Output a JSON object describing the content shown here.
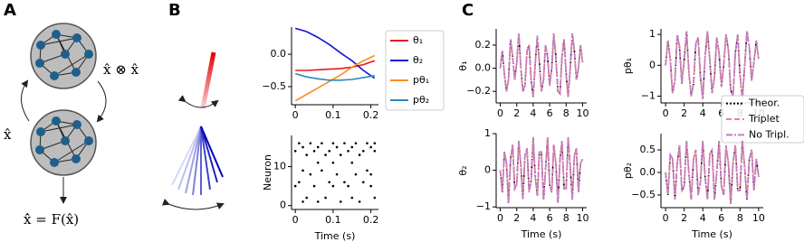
{
  "figure": {
    "panel_labels": [
      "A",
      "B",
      "C"
    ],
    "equations": [
      "x̂ ⊗ x̂",
      "x̂",
      "x̂̇ = F(x̂)"
    ]
  },
  "chart_data": [
    {
      "type": "line",
      "legend": "right",
      "x": [
        0,
        0.03,
        0.06,
        0.09,
        0.12,
        0.15,
        0.18,
        0.21
      ],
      "xlim": [
        -0.01,
        0.22
      ],
      "xticks": [
        0,
        0.1,
        0.2
      ],
      "ylim": [
        -0.78,
        0.42
      ],
      "yticks": [
        {
          "value": 0,
          "label": "0.0"
        },
        {
          "value": -0.5,
          "label": "−0.5"
        }
      ],
      "series": [
        {
          "name": "θ₁",
          "color": "#e8191c",
          "style": "solid",
          "values": [
            -0.25,
            -0.25,
            -0.24,
            -0.23,
            -0.22,
            -0.2,
            -0.16,
            -0.1
          ]
        },
        {
          "name": "θ₂",
          "color": "#1414d4",
          "style": "solid",
          "values": [
            0.4,
            0.35,
            0.26,
            0.15,
            0.02,
            -0.1,
            -0.25,
            -0.37
          ]
        },
        {
          "name": "pθ₁",
          "color": "#ff8c1a",
          "style": "solid",
          "values": [
            -0.72,
            -0.62,
            -0.52,
            -0.42,
            -0.32,
            -0.2,
            -0.1,
            -0.02
          ]
        },
        {
          "name": "pθ₂",
          "color": "#2a86c4",
          "style": "solid",
          "values": [
            -0.3,
            -0.35,
            -0.38,
            -0.4,
            -0.4,
            -0.39,
            -0.36,
            -0.33
          ]
        }
      ]
    },
    {
      "type": "scatter",
      "xlabel": "Time (s)",
      "ylabel": "Neuron",
      "color": "#000000",
      "xlim": [
        -0.01,
        0.22
      ],
      "xticks": [
        0,
        0.1,
        0.2
      ],
      "ylim": [
        -1,
        18
      ],
      "yticks": [
        0,
        10
      ],
      "x": [
        0.01,
        0.04,
        0.07,
        0.1,
        0.13,
        0.16,
        0.19,
        0.21,
        0.02,
        0.06,
        0.11,
        0.15,
        0.2,
        0.0,
        0.05,
        0.09,
        0.14,
        0.18,
        0.21,
        0.03,
        0.08,
        0.12,
        0.17,
        0.06,
        0.1,
        0.15,
        0.02,
        0.07,
        0.19,
        0.04,
        0.11,
        0.16,
        0.2,
        0.01,
        0.09,
        0.13,
        0.18,
        0.0,
        0.05,
        0.1,
        0.14,
        0.2,
        0.03,
        0.08,
        0.15,
        0.21,
        0.02,
        0.06,
        0.12,
        0.17
      ],
      "y": [
        16,
        16,
        16,
        16,
        16,
        16,
        16,
        16,
        15,
        15,
        15,
        15,
        15,
        14,
        14,
        14,
        14,
        14,
        14,
        13,
        13,
        13,
        13,
        11,
        11,
        11,
        9,
        9,
        9,
        8,
        8,
        8,
        8,
        6,
        6,
        6,
        6,
        5,
        5,
        5,
        5,
        5,
        2,
        2,
        2,
        2,
        1,
        1,
        1,
        1
      ]
    },
    {
      "type": "line",
      "ylabel": "θ₁",
      "x": [
        0,
        0.25,
        0.5,
        0.75,
        1,
        1.25,
        1.5,
        1.75,
        2,
        2.25,
        2.5,
        2.75,
        3,
        3.25,
        3.5,
        3.75,
        4,
        4.25,
        4.5,
        4.75,
        5,
        5.25,
        5.5,
        5.75,
        6,
        6.25,
        6.5,
        6.75,
        7,
        7.25,
        7.5,
        7.75,
        8,
        8.25,
        8.5,
        8.75,
        9,
        9.25,
        9.5,
        9.75,
        10
      ],
      "xlim": [
        -0.5,
        10.5
      ],
      "xticks": [
        0,
        2,
        4,
        6,
        8,
        10
      ],
      "ylim": [
        -0.3,
        0.34
      ],
      "yticks": [
        {
          "value": -0.2,
          "label": "−0.2"
        },
        {
          "value": 0,
          "label": "0.0"
        },
        0.2
      ],
      "series": [
        {
          "name": "Theor.",
          "color": "#000000",
          "style": "dotted",
          "values": [
            0.0,
            0.15,
            -0.05,
            -0.2,
            -0.1,
            0.25,
            0.1,
            -0.1,
            0.05,
            0.3,
            0.0,
            -0.2,
            -0.15,
            0.15,
            0.2,
            -0.1,
            -0.25,
            0.05,
            0.28,
            0.05,
            -0.2,
            -0.1,
            0.2,
            0.1,
            -0.15,
            0.0,
            0.3,
            0.1,
            -0.2,
            -0.22,
            0.1,
            0.25,
            -0.05,
            -0.25,
            0.0,
            0.3,
            0.15,
            -0.1,
            0.0,
            0.2,
            0.05
          ]
        },
        {
          "name": "Triplet",
          "color": "#f28080",
          "style": "dashed",
          "values": [
            0.0,
            0.15,
            -0.05,
            -0.2,
            -0.1,
            0.25,
            0.1,
            -0.1,
            0.05,
            0.3,
            0.0,
            -0.2,
            -0.15,
            0.15,
            0.2,
            -0.1,
            -0.25,
            0.05,
            0.28,
            0.05,
            -0.2,
            -0.1,
            0.2,
            0.1,
            -0.15,
            0.0,
            0.3,
            0.1,
            -0.2,
            -0.22,
            0.1,
            0.25,
            -0.05,
            -0.25,
            0.0,
            0.3,
            0.15,
            -0.1,
            0.0,
            0.2,
            0.05
          ]
        },
        {
          "name": "No Tripl.",
          "color": "#c07cc8",
          "style": "dashdot",
          "values": [
            0.0,
            0.15,
            -0.05,
            -0.2,
            -0.1,
            0.25,
            0.1,
            -0.1,
            0.05,
            0.3,
            0.0,
            -0.2,
            -0.15,
            0.15,
            0.2,
            -0.1,
            -0.25,
            0.05,
            0.28,
            0.05,
            -0.2,
            -0.1,
            0.2,
            0.1,
            -0.15,
            0.0,
            0.3,
            0.1,
            -0.2,
            -0.22,
            0.1,
            0.25,
            -0.05,
            -0.25,
            0.0,
            0.3,
            0.15,
            -0.1,
            0.0,
            0.2,
            0.05
          ]
        }
      ]
    },
    {
      "type": "line",
      "ylabel": "pθ₁",
      "legend": "right",
      "x": [
        0,
        0.25,
        0.5,
        0.75,
        1,
        1.25,
        1.5,
        1.75,
        2,
        2.25,
        2.5,
        2.75,
        3,
        3.25,
        3.5,
        3.75,
        4,
        4.25,
        4.5,
        4.75,
        5,
        5.25,
        5.5,
        5.75,
        6,
        6.25,
        6.5,
        6.75,
        7,
        7.25,
        7.5,
        7.75,
        8,
        8.25,
        8.5,
        8.75,
        9,
        9.25,
        9.5,
        9.75,
        10
      ],
      "xlim": [
        -0.5,
        10.5
      ],
      "xticks": [
        0,
        2,
        4,
        6,
        8,
        10
      ],
      "ylim": [
        -1.22,
        1.18
      ],
      "yticks": [
        {
          "value": -1,
          "label": "−1"
        },
        0,
        1
      ],
      "series": [
        {
          "name": "Theor.",
          "color": "#000000",
          "style": "dotted",
          "values": [
            0.0,
            0.8,
            0.2,
            -0.9,
            -0.5,
            1.0,
            0.6,
            -0.6,
            0.2,
            1.1,
            -0.2,
            -1.0,
            -0.6,
            0.7,
            0.9,
            -0.4,
            -1.1,
            0.3,
            1.1,
            0.2,
            -0.9,
            -0.4,
            0.9,
            0.4,
            -0.7,
            0.0,
            1.0,
            0.5,
            -0.8,
            -1.0,
            0.4,
            1.0,
            -0.3,
            -1.1,
            0.0,
            1.1,
            0.6,
            -0.5,
            0.1,
            0.8,
            0.2
          ]
        },
        {
          "name": "Triplet",
          "color": "#f28080",
          "style": "dashed",
          "values": [
            0.0,
            0.8,
            0.2,
            -0.9,
            -0.5,
            1.0,
            0.6,
            -0.6,
            0.2,
            1.1,
            -0.2,
            -1.0,
            -0.6,
            0.7,
            0.9,
            -0.4,
            -1.1,
            0.3,
            1.1,
            0.2,
            -0.9,
            -0.4,
            0.9,
            0.4,
            -0.7,
            0.0,
            1.0,
            0.5,
            -0.8,
            -1.0,
            0.4,
            1.0,
            -0.3,
            -1.1,
            0.0,
            1.1,
            0.6,
            -0.5,
            0.1,
            0.8,
            0.2
          ]
        },
        {
          "name": "No Tripl.",
          "color": "#c07cc8",
          "style": "dashdot",
          "values": [
            0.0,
            0.8,
            0.2,
            -0.9,
            -0.5,
            1.0,
            0.6,
            -0.6,
            0.2,
            1.1,
            -0.2,
            -1.0,
            -0.6,
            0.7,
            0.9,
            -0.4,
            -1.1,
            0.3,
            1.1,
            0.2,
            -0.9,
            -0.4,
            0.9,
            0.4,
            -0.7,
            0.0,
            1.0,
            0.5,
            -0.8,
            -1.0,
            0.4,
            1.0,
            -0.3,
            -1.1,
            0.0,
            1.1,
            0.6,
            -0.5,
            0.1,
            0.8,
            0.2
          ]
        }
      ]
    },
    {
      "type": "line",
      "ylabel": "θ₂",
      "xlabel": "Time (s)",
      "x": [
        0,
        0.25,
        0.5,
        0.75,
        1,
        1.25,
        1.5,
        1.75,
        2,
        2.25,
        2.5,
        2.75,
        3,
        3.25,
        3.5,
        3.75,
        4,
        4.25,
        4.5,
        4.75,
        5,
        5.25,
        5.5,
        5.75,
        6,
        6.25,
        6.5,
        6.75,
        7,
        7.25,
        7.5,
        7.75,
        8,
        8.25,
        8.5,
        8.75,
        9,
        9.25,
        9.5,
        9.75,
        10
      ],
      "xlim": [
        -0.5,
        10.5
      ],
      "xticks": [
        0,
        2,
        4,
        6,
        8,
        10
      ],
      "ylim": [
        -1.02,
        1.0
      ],
      "yticks": [
        {
          "value": -1,
          "label": "−1"
        },
        0,
        1
      ],
      "series": [
        {
          "name": "Theor.",
          "color": "#000000",
          "style": "dotted",
          "values": [
            0.0,
            -0.6,
            0.5,
            0.2,
            -0.9,
            0.3,
            0.7,
            -0.5,
            -0.4,
            0.8,
            0.1,
            -0.8,
            0.4,
            0.6,
            -0.6,
            -0.3,
            0.9,
            -0.2,
            -0.7,
            0.5,
            0.5,
            -0.8,
            0.0,
            0.9,
            -0.4,
            -0.6,
            0.7,
            0.2,
            -0.9,
            0.3,
            0.8,
            -0.5,
            -0.5,
            0.9,
            0.1,
            -0.8,
            0.4,
            0.6,
            -0.6,
            0.2,
            0.3
          ]
        },
        {
          "name": "Triplet",
          "color": "#f28080",
          "style": "dashed",
          "values": [
            0.0,
            -0.6,
            0.5,
            0.2,
            -0.9,
            0.3,
            0.7,
            -0.5,
            -0.4,
            0.8,
            0.1,
            -0.8,
            0.4,
            0.6,
            -0.6,
            -0.3,
            0.9,
            -0.2,
            -0.7,
            0.5,
            0.5,
            -0.8,
            0.0,
            0.9,
            -0.4,
            -0.6,
            0.7,
            0.2,
            -0.9,
            0.3,
            0.8,
            -0.5,
            -0.5,
            0.9,
            0.1,
            -0.8,
            0.4,
            0.6,
            -0.6,
            0.2,
            0.3
          ]
        },
        {
          "name": "No Tripl.",
          "color": "#c07cc8",
          "style": "dashdot",
          "values": [
            0.0,
            -0.6,
            0.5,
            0.2,
            -0.9,
            0.3,
            0.7,
            -0.5,
            -0.4,
            0.8,
            0.1,
            -0.8,
            0.4,
            0.6,
            -0.6,
            -0.3,
            0.9,
            -0.2,
            -0.7,
            0.5,
            0.5,
            -0.8,
            0.0,
            0.9,
            -0.4,
            -0.6,
            0.7,
            0.2,
            -0.9,
            0.3,
            0.8,
            -0.5,
            -0.5,
            0.9,
            0.1,
            -0.8,
            0.4,
            0.6,
            -0.6,
            0.2,
            0.3
          ]
        }
      ]
    },
    {
      "type": "line",
      "ylabel": "pθ₂",
      "xlabel": "Time (s)",
      "x": [
        0,
        0.25,
        0.5,
        0.75,
        1,
        1.25,
        1.5,
        1.75,
        2,
        2.25,
        2.5,
        2.75,
        3,
        3.25,
        3.5,
        3.75,
        4,
        4.25,
        4.5,
        4.75,
        5,
        5.25,
        5.5,
        5.75,
        6,
        6.25,
        6.5,
        6.75,
        7,
        7.25,
        7.5,
        7.75,
        8,
        8.25,
        8.5,
        8.75,
        9,
        9.25,
        9.5,
        9.75,
        10
      ],
      "xlim": [
        -0.5,
        10.5
      ],
      "xticks": [
        0,
        2,
        4,
        6,
        8,
        10
      ],
      "ylim": [
        -0.78,
        0.86
      ],
      "yticks": [
        {
          "value": -0.5,
          "label": "−0.5"
        },
        {
          "value": 0,
          "label": "0.0"
        },
        0.5
      ],
      "series": [
        {
          "name": "Theor.",
          "color": "#000000",
          "style": "dotted",
          "values": [
            0.0,
            -0.5,
            0.4,
            0.3,
            -0.6,
            0.2,
            0.6,
            -0.4,
            -0.3,
            0.7,
            0.0,
            -0.6,
            0.3,
            0.5,
            -0.5,
            -0.2,
            0.7,
            -0.1,
            -0.6,
            0.4,
            0.5,
            -0.6,
            0.0,
            0.7,
            -0.3,
            -0.5,
            0.6,
            0.2,
            -0.7,
            0.2,
            0.6,
            -0.4,
            -0.4,
            0.7,
            0.1,
            -0.6,
            0.3,
            0.5,
            -0.4,
            0.3,
            -0.1
          ]
        },
        {
          "name": "Triplet",
          "color": "#f28080",
          "style": "dashed",
          "values": [
            0.0,
            -0.5,
            0.4,
            0.3,
            -0.6,
            0.2,
            0.6,
            -0.4,
            -0.3,
            0.7,
            0.0,
            -0.6,
            0.3,
            0.5,
            -0.5,
            -0.2,
            0.7,
            -0.1,
            -0.6,
            0.4,
            0.5,
            -0.6,
            0.0,
            0.7,
            -0.3,
            -0.5,
            0.6,
            0.2,
            -0.7,
            0.2,
            0.6,
            -0.4,
            -0.4,
            0.7,
            0.1,
            -0.6,
            0.3,
            0.5,
            -0.4,
            0.3,
            -0.1
          ]
        },
        {
          "name": "No Tripl.",
          "color": "#c07cc8",
          "style": "dashdot",
          "values": [
            0.0,
            -0.5,
            0.4,
            0.3,
            -0.6,
            0.2,
            0.6,
            -0.4,
            -0.3,
            0.7,
            0.0,
            -0.6,
            0.3,
            0.5,
            -0.5,
            -0.2,
            0.7,
            -0.1,
            -0.6,
            0.4,
            0.5,
            -0.6,
            0.0,
            0.7,
            -0.3,
            -0.5,
            0.6,
            0.2,
            -0.7,
            0.2,
            0.6,
            -0.4,
            -0.4,
            0.7,
            0.1,
            -0.6,
            0.3,
            0.5,
            -0.4,
            0.3,
            -0.1
          ]
        }
      ]
    }
  ]
}
